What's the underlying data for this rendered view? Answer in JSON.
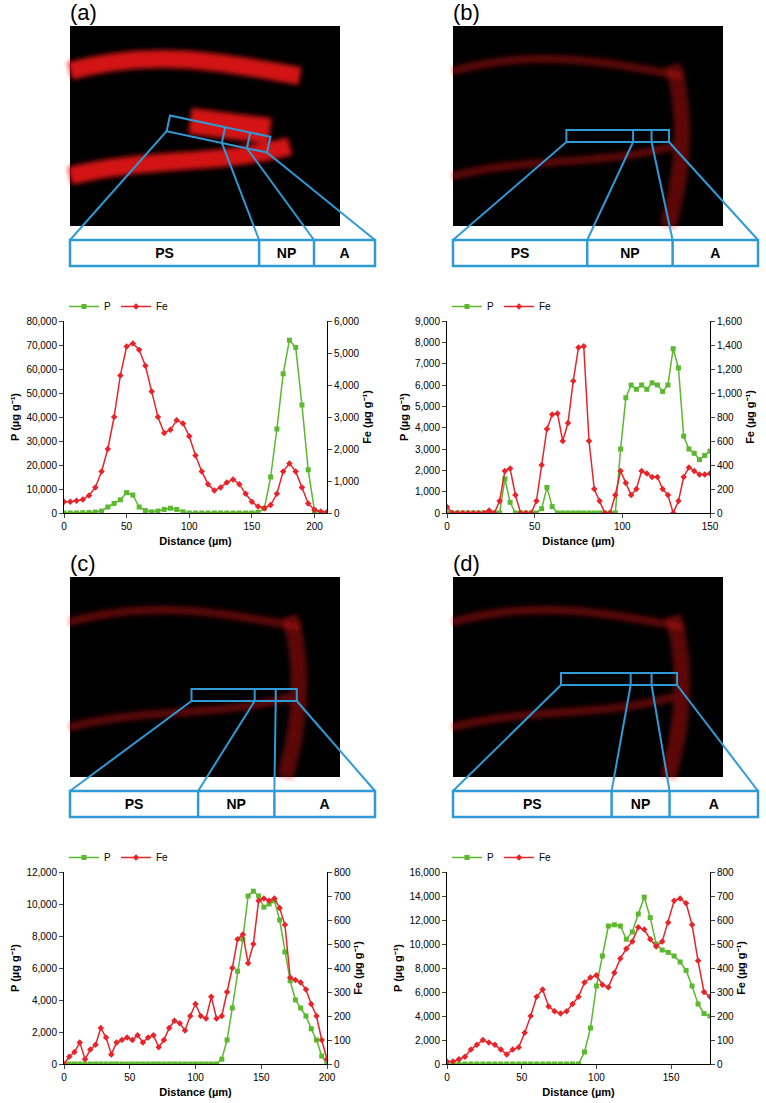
{
  "chart_data": [
    {
      "type": "line",
      "title": "(a)",
      "annotations": [
        "PS",
        "NP",
        "A"
      ],
      "x_label": "Distance (µm)",
      "y_label": "P (µg g⁻¹)",
      "y2_label": "Fe (µg g⁻¹)",
      "grid": false,
      "legend": "top left",
      "xlim": [
        0,
        210
      ],
      "xticks": [
        0,
        50,
        100,
        150,
        200
      ],
      "ylim": [
        0,
        80000
      ],
      "yticks": [
        0,
        {
          "value": 10000,
          "label": "10,000"
        },
        {
          "value": 20000,
          "label": "20,000"
        },
        {
          "value": 30000,
          "label": "30,000"
        },
        {
          "value": 40000,
          "label": "40,000"
        },
        {
          "value": 50000,
          "label": "50,000"
        },
        {
          "value": 60000,
          "label": "60,000"
        },
        {
          "value": 70000,
          "label": "70,000"
        },
        {
          "value": 80000,
          "label": "80,000"
        }
      ],
      "y2lim": [
        0,
        6000
      ],
      "y2ticks": [
        0,
        {
          "value": 1000,
          "label": "1,000"
        },
        {
          "value": 2000,
          "label": "2,000"
        },
        {
          "value": 3000,
          "label": "3,000"
        },
        {
          "value": 4000,
          "label": "4,000"
        },
        {
          "value": 5000,
          "label": "5,000"
        },
        {
          "value": 6000,
          "label": "6,000"
        }
      ],
      "x": [
        0,
        5,
        10,
        15,
        20,
        25,
        30,
        35,
        40,
        45,
        50,
        55,
        60,
        65,
        70,
        75,
        80,
        85,
        90,
        95,
        100,
        105,
        110,
        115,
        120,
        125,
        130,
        135,
        140,
        145,
        150,
        155,
        160,
        165,
        170,
        175,
        180,
        185,
        190,
        195,
        200,
        205,
        210
      ],
      "series": [
        {
          "name": "P",
          "color": "#5cb82e",
          "marker": "square",
          "line_style": "solid",
          "values": [
            0,
            0,
            0,
            100,
            200,
            400,
            800,
            2500,
            4000,
            5500,
            8500,
            7500,
            2500,
            1000,
            500,
            800,
            1500,
            2000,
            1500,
            500,
            0,
            0,
            0,
            0,
            0,
            0,
            0,
            0,
            0,
            0,
            0,
            300,
            2000,
            15000,
            35000,
            58000,
            72000,
            69000,
            45000,
            18000,
            1000,
            200,
            0
          ]
        },
        {
          "name": "Fe",
          "color": "#e8242b",
          "marker": "diamond",
          "line_style": "solid",
          "axis": "y2",
          "values": [
            350,
            350,
            380,
            420,
            550,
            800,
            1300,
            2000,
            3000,
            4300,
            5200,
            5300,
            5100,
            4600,
            3800,
            3000,
            2500,
            2600,
            2900,
            2800,
            2400,
            1800,
            1300,
            900,
            700,
            800,
            950,
            1050,
            900,
            600,
            350,
            200,
            150,
            250,
            600,
            1300,
            1550,
            1300,
            800,
            300,
            100,
            50,
            30
          ]
        }
      ]
    },
    {
      "type": "line",
      "title": "(b)",
      "annotations": [
        "PS",
        "NP",
        "A"
      ],
      "x_label": "Distance (µm)",
      "y_label": "P (µg g⁻¹)",
      "y2_label": "Fe (µg g⁻¹)",
      "grid": false,
      "legend": "top left",
      "xlim": [
        0,
        150
      ],
      "xticks": [
        0,
        50,
        100,
        150
      ],
      "ylim": [
        0,
        9000
      ],
      "yticks": [
        0,
        {
          "value": 1000,
          "label": "1,000"
        },
        {
          "value": 2000,
          "label": "2,000"
        },
        {
          "value": 3000,
          "label": "3,000"
        },
        {
          "value": 4000,
          "label": "4,000"
        },
        {
          "value": 5000,
          "label": "5,000"
        },
        {
          "value": 6000,
          "label": "6,000"
        },
        {
          "value": 7000,
          "label": "7,000"
        },
        {
          "value": 8000,
          "label": "8,000"
        },
        {
          "value": 9000,
          "label": "9,000"
        }
      ],
      "y2lim": [
        0,
        1600
      ],
      "y2ticks": [
        0,
        200,
        400,
        600,
        800,
        {
          "value": 1000,
          "label": "1,000"
        },
        {
          "value": 1200,
          "label": "1,200"
        },
        {
          "value": 1400,
          "label": "1,400"
        },
        {
          "value": 1600,
          "label": "1,600"
        }
      ],
      "x": [
        0,
        3,
        6,
        9,
        12,
        15,
        18,
        21,
        24,
        27,
        30,
        33,
        36,
        39,
        42,
        45,
        48,
        51,
        54,
        57,
        60,
        63,
        66,
        69,
        72,
        75,
        78,
        81,
        84,
        87,
        90,
        93,
        96,
        99,
        102,
        105,
        108,
        111,
        114,
        117,
        120,
        123,
        126,
        129,
        132,
        135,
        138,
        141,
        144,
        147,
        150
      ],
      "series": [
        {
          "name": "P",
          "color": "#5cb82e",
          "marker": "square",
          "line_style": "solid",
          "values": [
            0,
            0,
            0,
            0,
            0,
            0,
            0,
            0,
            0,
            0,
            0,
            1600,
            500,
            0,
            0,
            0,
            0,
            0,
            200,
            1200,
            300,
            0,
            0,
            0,
            0,
            0,
            0,
            0,
            0,
            0,
            0,
            0,
            0,
            3000,
            5400,
            6000,
            5800,
            6000,
            5800,
            6100,
            6000,
            5700,
            6000,
            7700,
            6800,
            3600,
            3000,
            2800,
            2500,
            2700,
            2900
          ]
        },
        {
          "name": "Fe",
          "color": "#e8242b",
          "marker": "diamond",
          "line_style": "solid",
          "axis": "y2",
          "values": [
            50,
            0,
            0,
            0,
            0,
            0,
            0,
            0,
            20,
            0,
            100,
            350,
            370,
            150,
            0,
            0,
            0,
            100,
            400,
            700,
            820,
            830,
            600,
            750,
            1100,
            1380,
            1390,
            600,
            200,
            100,
            0,
            0,
            150,
            350,
            250,
            150,
            200,
            350,
            330,
            300,
            300,
            200,
            150,
            0,
            100,
            300,
            380,
            350,
            320,
            320,
            330
          ]
        }
      ]
    },
    {
      "type": "line",
      "title": "(c)",
      "annotations": [
        "PS",
        "NP",
        "A"
      ],
      "x_label": "Distance (µm)",
      "y_label": "P (µg g⁻¹)",
      "y2_label": "Fe (µg g⁻¹)",
      "grid": false,
      "legend": "top left",
      "xlim": [
        0,
        200
      ],
      "xticks": [
        0,
        50,
        100,
        150,
        200
      ],
      "ylim": [
        0,
        12000
      ],
      "yticks": [
        0,
        {
          "value": 2000,
          "label": "2,000"
        },
        {
          "value": 4000,
          "label": "4,000"
        },
        {
          "value": 6000,
          "label": "6,000"
        },
        {
          "value": 8000,
          "label": "8,000"
        },
        {
          "value": 10000,
          "label": "10,000"
        },
        {
          "value": 12000,
          "label": "12,000"
        }
      ],
      "y2lim": [
        0,
        800
      ],
      "y2ticks": [
        0,
        100,
        200,
        300,
        400,
        500,
        600,
        700,
        800
      ],
      "x": [
        0,
        4,
        8,
        12,
        16,
        20,
        24,
        28,
        32,
        36,
        40,
        44,
        48,
        52,
        56,
        60,
        64,
        68,
        72,
        76,
        80,
        84,
        88,
        92,
        96,
        100,
        104,
        108,
        112,
        116,
        120,
        124,
        128,
        132,
        136,
        140,
        144,
        148,
        152,
        156,
        160,
        164,
        168,
        172,
        176,
        180,
        184,
        188,
        192,
        196,
        200
      ],
      "series": [
        {
          "name": "P",
          "color": "#5cb82e",
          "marker": "square",
          "line_style": "solid",
          "values": [
            0,
            0,
            0,
            0,
            0,
            0,
            0,
            0,
            0,
            0,
            0,
            0,
            0,
            0,
            0,
            0,
            0,
            0,
            0,
            0,
            0,
            0,
            0,
            0,
            0,
            0,
            0,
            0,
            0,
            0,
            300,
            1500,
            3500,
            5800,
            7800,
            10500,
            10800,
            10500,
            9800,
            10000,
            10200,
            9000,
            7000,
            5200,
            4000,
            3500,
            3000,
            2200,
            1500,
            500,
            0
          ]
        },
        {
          "name": "Fe",
          "color": "#e8242b",
          "marker": "diamond",
          "line_style": "solid",
          "axis": "y2",
          "values": [
            0,
            30,
            50,
            90,
            20,
            60,
            80,
            150,
            110,
            40,
            90,
            100,
            110,
            100,
            120,
            90,
            110,
            120,
            70,
            100,
            150,
            180,
            170,
            140,
            200,
            250,
            200,
            190,
            280,
            190,
            200,
            300,
            400,
            520,
            540,
            420,
            500,
            680,
            690,
            680,
            690,
            650,
            580,
            360,
            350,
            340,
            310,
            250,
            200,
            100,
            20
          ]
        }
      ]
    },
    {
      "type": "line",
      "title": "(d)",
      "annotations": [
        "PS",
        "NP",
        "A"
      ],
      "x_label": "Distance (µm)",
      "y_label": "P (µg g⁻¹)",
      "y2_label": "Fe (µg g⁻¹)",
      "grid": false,
      "legend": "top left",
      "xlim": [
        0,
        176
      ],
      "xticks": [
        0,
        50,
        100,
        150
      ],
      "ylim": [
        0,
        16000
      ],
      "yticks": [
        0,
        {
          "value": 2000,
          "label": "2,000"
        },
        {
          "value": 4000,
          "label": "4,000"
        },
        {
          "value": 6000,
          "label": "6,000"
        },
        {
          "value": 8000,
          "label": "8,000"
        },
        {
          "value": 10000,
          "label": "10,000"
        },
        {
          "value": 12000,
          "label": "12,000"
        },
        {
          "value": 14000,
          "label": "14,000"
        },
        {
          "value": 16000,
          "label": "16,000"
        }
      ],
      "y2lim": [
        0,
        800
      ],
      "y2ticks": [
        0,
        100,
        200,
        300,
        400,
        500,
        600,
        700,
        800
      ],
      "x": [
        0,
        4,
        8,
        12,
        16,
        20,
        24,
        28,
        32,
        36,
        40,
        44,
        48,
        52,
        56,
        60,
        64,
        68,
        72,
        76,
        80,
        84,
        88,
        92,
        96,
        100,
        104,
        108,
        112,
        116,
        120,
        124,
        128,
        132,
        136,
        140,
        144,
        148,
        152,
        156,
        160,
        164,
        168,
        172,
        176
      ],
      "series": [
        {
          "name": "P",
          "color": "#5cb82e",
          "marker": "square",
          "line_style": "solid",
          "values": [
            0,
            0,
            0,
            0,
            0,
            0,
            0,
            0,
            0,
            0,
            0,
            0,
            0,
            0,
            0,
            0,
            0,
            0,
            0,
            0,
            0,
            0,
            0,
            1000,
            3000,
            6500,
            9000,
            11500,
            11600,
            11500,
            10400,
            11000,
            12500,
            13900,
            12200,
            10000,
            9500,
            9300,
            9000,
            8500,
            7800,
            6500,
            5000,
            4200,
            4000
          ]
        },
        {
          "name": "Fe",
          "color": "#e8242b",
          "marker": "diamond",
          "line_style": "solid",
          "axis": "y2",
          "values": [
            10,
            10,
            20,
            30,
            60,
            80,
            100,
            90,
            80,
            60,
            40,
            60,
            70,
            130,
            200,
            280,
            310,
            240,
            220,
            210,
            220,
            250,
            280,
            340,
            360,
            370,
            330,
            320,
            380,
            440,
            480,
            510,
            570,
            560,
            520,
            490,
            510,
            590,
            680,
            690,
            670,
            580,
            430,
            300,
            280
          ]
        }
      ]
    }
  ]
}
